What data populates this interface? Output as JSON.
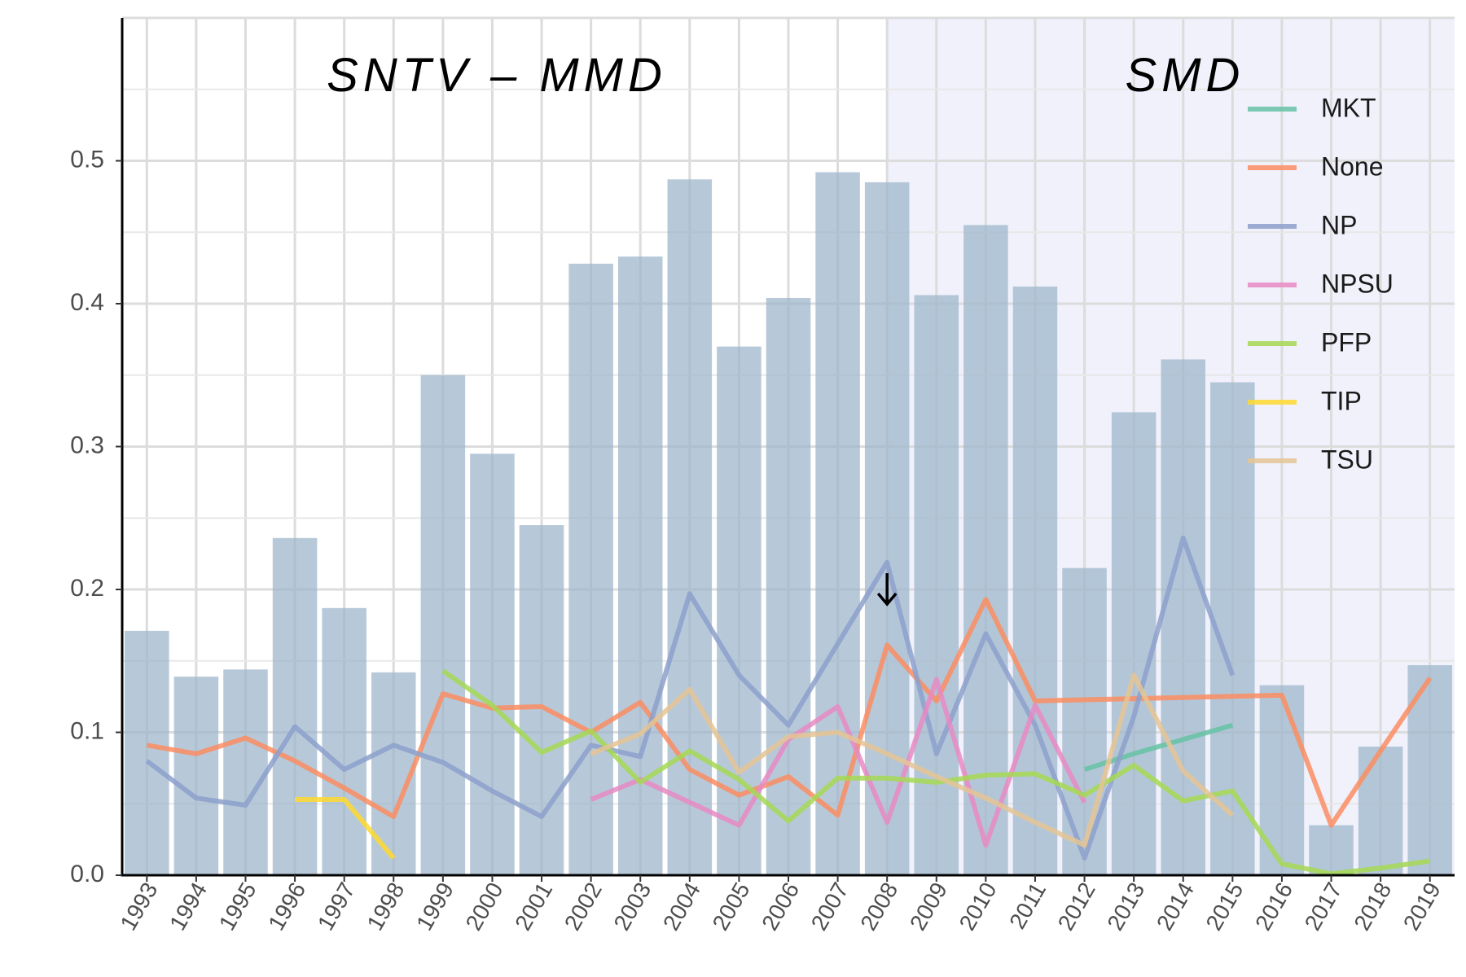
{
  "chart_data": {
    "type": "bar",
    "x": [
      1993,
      1994,
      1995,
      1996,
      1997,
      1998,
      1999,
      2000,
      2001,
      2002,
      2003,
      2004,
      2005,
      2006,
      2007,
      2008,
      2009,
      2010,
      2011,
      2012,
      2013,
      2014,
      2015,
      2016,
      2017,
      2018,
      2019
    ],
    "x_labels": [
      "1993",
      "1994",
      "1995",
      "1996",
      "1997",
      "1998",
      "1999",
      "2000",
      "2001",
      "2002",
      "2003",
      "2004",
      "2005",
      "2006",
      "2007",
      "2008",
      "2009",
      "2010",
      "2011",
      "2012",
      "2013",
      "2014",
      "2015",
      "2016",
      "2017",
      "2018",
      "2019"
    ],
    "bars": [
      0.171,
      0.139,
      0.144,
      0.236,
      0.187,
      0.142,
      0.35,
      0.295,
      0.245,
      0.428,
      0.433,
      0.487,
      0.37,
      0.404,
      0.492,
      0.485,
      0.406,
      0.455,
      0.412,
      0.215,
      0.324,
      0.361,
      0.345,
      0.133,
      0.035,
      0.09,
      0.147
    ],
    "bar_color": "#9fb7cc",
    "ylim": [
      0,
      0.6
    ],
    "y_ticks": [
      0.0,
      0.1,
      0.2,
      0.3,
      0.4,
      0.5
    ],
    "y_tick_labels": [
      "0.0",
      "0.1",
      "0.2",
      "0.3",
      "0.4",
      "0.5"
    ],
    "grid": true,
    "regions": [
      {
        "label": "SNTV – MMD",
        "from": 1993,
        "to": 2008,
        "shade": "#ffffff"
      },
      {
        "label": "SMD",
        "from": 2008,
        "to": 2019,
        "shade": "#f0f1fb"
      }
    ],
    "marker": {
      "x": 2008,
      "y": 0.2,
      "glyph": "arrow-down-icon"
    },
    "legend_position": "top-right",
    "series": [
      {
        "name": "MKT",
        "color": "#66c2a5",
        "x": [
          2012,
          2013,
          2014,
          2015
        ],
        "values": [
          0.074,
          0.085,
          0.095,
          0.105
        ]
      },
      {
        "name": "None",
        "color": "#fc8d62",
        "x": [
          1993,
          1994,
          1995,
          1996,
          1997,
          1998,
          1999,
          2000,
          2001,
          2002,
          2003,
          2004,
          2005,
          2006,
          2007,
          2008,
          2009,
          2010,
          2011,
          2016,
          2017,
          2018,
          2019
        ],
        "values": [
          0.091,
          0.085,
          0.096,
          0.08,
          0.061,
          0.041,
          0.127,
          0.117,
          0.118,
          0.1,
          0.121,
          0.074,
          0.056,
          0.069,
          0.042,
          0.161,
          0.122,
          0.193,
          0.122,
          0.126,
          0.035,
          0.087,
          0.138
        ]
      },
      {
        "name": "NP",
        "color": "#8da0cb",
        "x": [
          1993,
          1994,
          1995,
          1996,
          1997,
          1998,
          1999,
          2000,
          2001,
          2002,
          2003,
          2004,
          2005,
          2006,
          2007,
          2008,
          2009,
          2010,
          2011,
          2012,
          2013,
          2014,
          2015
        ],
        "values": [
          0.08,
          0.054,
          0.049,
          0.104,
          0.074,
          0.091,
          0.079,
          0.059,
          0.041,
          0.091,
          0.083,
          0.197,
          0.14,
          0.105,
          0.162,
          0.219,
          0.085,
          0.169,
          0.105,
          0.012,
          0.111,
          0.236,
          0.14
        ]
      },
      {
        "name": "NPSU",
        "color": "#e78ac3",
        "x": [
          2002,
          2003,
          2004,
          2005,
          2006,
          2007,
          2008,
          2009,
          2010,
          2011,
          2012
        ],
        "values": [
          0.053,
          0.067,
          0.051,
          0.035,
          0.095,
          0.118,
          0.037,
          0.137,
          0.021,
          0.119,
          0.051
        ]
      },
      {
        "name": "PFP",
        "color": "#a6d854",
        "x": [
          1999,
          2000,
          2001,
          2002,
          2003,
          2004,
          2005,
          2006,
          2007,
          2008,
          2009,
          2010,
          2011,
          2012,
          2013,
          2014,
          2015,
          2016,
          2017,
          2018,
          2019
        ],
        "values": [
          0.143,
          0.119,
          0.086,
          0.101,
          0.065,
          0.087,
          0.067,
          0.038,
          0.068,
          0.068,
          0.065,
          0.07,
          0.071,
          0.056,
          0.077,
          0.052,
          0.059,
          0.008,
          0.001,
          0.005,
          0.01
        ]
      },
      {
        "name": "TIP",
        "color": "#ffd92f",
        "x": [
          1996,
          1997,
          1998
        ],
        "values": [
          0.053,
          0.053,
          0.012
        ]
      },
      {
        "name": "TSU",
        "color": "#e5c494",
        "x": [
          2002,
          2003,
          2004,
          2005,
          2006,
          2007,
          2008,
          2009,
          2010,
          2011,
          2012,
          2013,
          2014,
          2015
        ],
        "values": [
          0.085,
          0.099,
          0.13,
          0.072,
          0.097,
          0.1,
          0.085,
          0.069,
          0.054,
          0.037,
          0.021,
          0.14,
          0.073,
          0.042
        ]
      }
    ]
  }
}
